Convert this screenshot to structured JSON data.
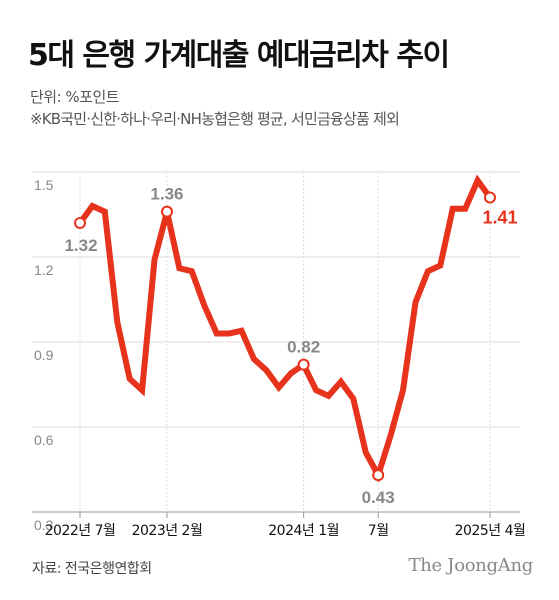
{
  "title": "5대 은행 가계대출 예대금리차 추이",
  "unit": "단위: %포인트",
  "note": "※KB국민·신한·하나·우리·NH농협은행 평균, 서민금융상품 제외",
  "source": "자료: 전국은행연합회",
  "brand": "The JoongAng",
  "colors": {
    "line": "#e8331c",
    "grid": "#dddddd",
    "axis": "#999999"
  },
  "chart_data": {
    "type": "line",
    "title": "5대 은행 가계대출 예대금리차 추이",
    "ylabel": "%포인트",
    "ylim": [
      0.3,
      1.5
    ],
    "yticks": [
      0.3,
      0.6,
      0.9,
      1.2,
      1.5
    ],
    "grid": true,
    "x": [
      "2022-07",
      "2022-08",
      "2022-09",
      "2022-10",
      "2022-11",
      "2022-12",
      "2023-01",
      "2023-02",
      "2023-03",
      "2023-04",
      "2023-05",
      "2023-06",
      "2023-07",
      "2023-08",
      "2023-09",
      "2023-10",
      "2023-11",
      "2023-12",
      "2024-01",
      "2024-02",
      "2024-03",
      "2024-04",
      "2024-05",
      "2024-06",
      "2024-07",
      "2024-08",
      "2024-09",
      "2024-10",
      "2024-11",
      "2024-12",
      "2025-01",
      "2025-02",
      "2025-03",
      "2025-04"
    ],
    "series": [
      {
        "values": [
          1.32,
          1.38,
          1.36,
          0.97,
          0.77,
          0.73,
          1.19,
          1.36,
          1.16,
          1.15,
          1.03,
          0.93,
          0.93,
          0.94,
          0.84,
          0.8,
          0.74,
          0.79,
          0.82,
          0.73,
          0.71,
          0.76,
          0.7,
          0.51,
          0.43,
          0.57,
          0.73,
          1.04,
          1.15,
          1.17,
          1.37,
          1.37,
          1.47,
          1.41
        ]
      }
    ],
    "x_tick_labels": [
      {
        "index": 0,
        "label": "2022년 7월"
      },
      {
        "index": 7,
        "label": "2023년 2월"
      },
      {
        "index": 18,
        "label": "2024년 1월"
      },
      {
        "index": 24,
        "label": "7월"
      },
      {
        "index": 33,
        "label": "2025년 4월"
      }
    ],
    "annotations": [
      {
        "index": 0,
        "label": "1.32",
        "pos": "below"
      },
      {
        "index": 7,
        "label": "1.36",
        "pos": "above"
      },
      {
        "index": 18,
        "label": "0.82",
        "pos": "above"
      },
      {
        "index": 24,
        "label": "0.43",
        "pos": "below"
      },
      {
        "index": 33,
        "label": "1.41",
        "pos": "below",
        "highlight": true
      }
    ]
  }
}
